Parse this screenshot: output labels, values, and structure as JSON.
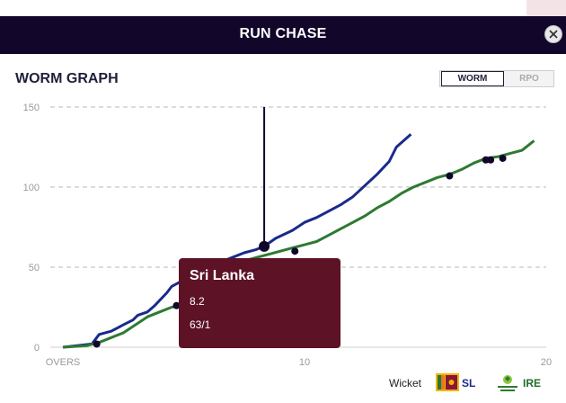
{
  "header": {
    "title": "RUN CHASE"
  },
  "section_title": "WORM GRAPH",
  "toggle": {
    "worm_label": "WORM",
    "rpo_label": "RPO"
  },
  "tooltip": {
    "team": "Sri Lanka",
    "over": "8.2",
    "score": "63/1"
  },
  "legend": {
    "wicket_label": "Wicket",
    "sl_label": "SL",
    "ire_label": "IRE"
  },
  "colors": {
    "sl": "#1a2a8a",
    "ire": "#2e7a31",
    "header_bg": "#12062a",
    "tooltip_bg": "#5d1226"
  },
  "chart_data": {
    "type": "line",
    "xlabel": "OVERS",
    "xlim": [
      0,
      20
    ],
    "ylim": [
      0,
      150
    ],
    "x_ticks": [
      {
        "value": 0,
        "label": "OVERS"
      },
      {
        "value": 10,
        "label": "10"
      },
      {
        "value": 20,
        "label": "20"
      }
    ],
    "y_ticks": [
      {
        "value": 0,
        "label": "0"
      },
      {
        "value": 50,
        "label": "50"
      },
      {
        "value": 100,
        "label": "100"
      },
      {
        "value": 150,
        "label": "150"
      }
    ],
    "grid": "horizontal dashed",
    "crosshair_x": 8.33,
    "series": [
      {
        "name": "SL",
        "color": "#1a2a8a",
        "points": [
          [
            0,
            0
          ],
          [
            1.2,
            2
          ],
          [
            1.5,
            8
          ],
          [
            2,
            10
          ],
          [
            2.5,
            14
          ],
          [
            2.9,
            17
          ],
          [
            3.1,
            20
          ],
          [
            3.5,
            22
          ],
          [
            3.8,
            26
          ],
          [
            4.3,
            34
          ],
          [
            4.5,
            38
          ],
          [
            5,
            42
          ],
          [
            5.5,
            46
          ],
          [
            6,
            49
          ],
          [
            6.5,
            53
          ],
          [
            7,
            56
          ],
          [
            7.5,
            59
          ],
          [
            8,
            61
          ],
          [
            8.33,
            63
          ],
          [
            8.8,
            68
          ],
          [
            9.5,
            73
          ],
          [
            10,
            78
          ],
          [
            10.5,
            81
          ],
          [
            11,
            85
          ],
          [
            11.5,
            89
          ],
          [
            12,
            94
          ],
          [
            12.5,
            101
          ],
          [
            13,
            108
          ],
          [
            13.5,
            116
          ],
          [
            13.8,
            125
          ],
          [
            14.1,
            129
          ],
          [
            14.4,
            133
          ]
        ],
        "wickets": [
          [
            8.33,
            63
          ]
        ]
      },
      {
        "name": "IRE",
        "color": "#2e7a31",
        "points": [
          [
            0,
            0
          ],
          [
            1,
            1
          ],
          [
            1.5,
            3
          ],
          [
            2,
            6
          ],
          [
            2.5,
            9
          ],
          [
            3,
            14
          ],
          [
            3.5,
            19
          ],
          [
            4,
            22
          ],
          [
            4.5,
            25
          ],
          [
            5,
            26
          ],
          [
            5.5,
            30
          ],
          [
            6,
            36
          ],
          [
            6.5,
            44
          ],
          [
            7,
            50
          ],
          [
            7.5,
            54
          ],
          [
            8,
            56
          ],
          [
            8.5,
            58
          ],
          [
            9,
            60
          ],
          [
            9.5,
            62
          ],
          [
            10,
            64
          ],
          [
            10.5,
            66
          ],
          [
            11,
            70
          ],
          [
            11.5,
            74
          ],
          [
            12,
            78
          ],
          [
            12.5,
            82
          ],
          [
            13,
            87
          ],
          [
            13.5,
            91
          ],
          [
            14,
            96
          ],
          [
            14.5,
            100
          ],
          [
            15,
            103
          ],
          [
            15.5,
            106
          ],
          [
            16,
            108
          ],
          [
            16.5,
            111
          ],
          [
            17,
            115
          ],
          [
            17.5,
            118
          ],
          [
            18,
            119
          ],
          [
            18.5,
            121
          ],
          [
            19,
            123
          ],
          [
            19.5,
            129
          ]
        ],
        "wickets": [
          [
            1.4,
            2
          ],
          [
            4.7,
            26
          ],
          [
            9.6,
            60
          ],
          [
            16,
            107
          ],
          [
            17.5,
            117
          ],
          [
            17.7,
            117
          ],
          [
            18.2,
            118
          ]
        ]
      }
    ]
  }
}
